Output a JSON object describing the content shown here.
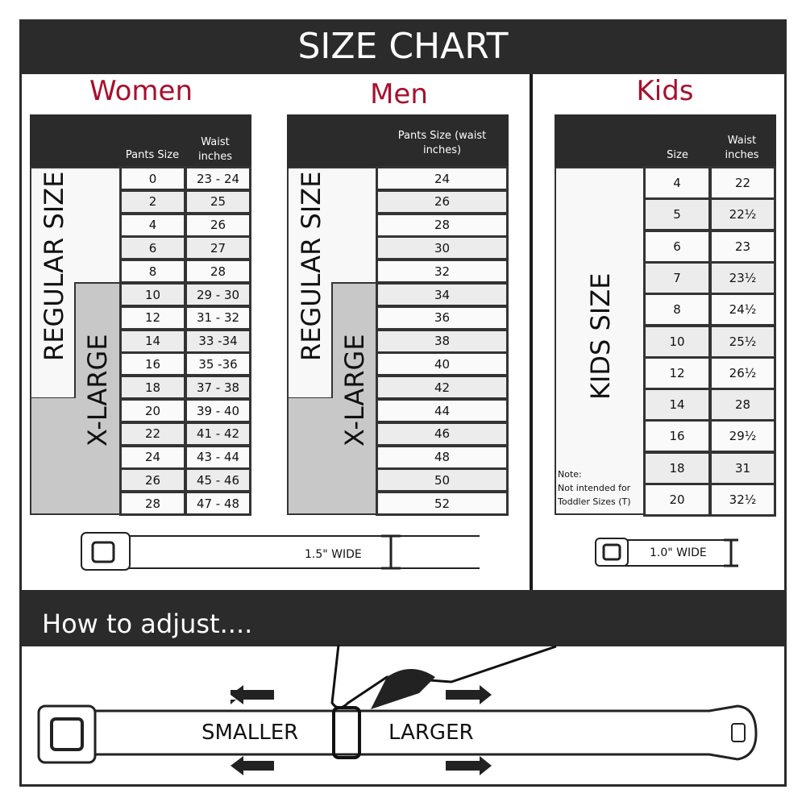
{
  "title": "SIZE CHART",
  "accent_color": "#a8102e",
  "women": {
    "heading": "Women",
    "col_size": "Pants Size",
    "col_waist": "Waist inches",
    "regular_label": "REGULAR SIZE",
    "xlarge_label": "X-LARGE",
    "rows": [
      [
        "0",
        "23 - 24"
      ],
      [
        "2",
        "25"
      ],
      [
        "4",
        "26"
      ],
      [
        "6",
        "27"
      ],
      [
        "8",
        "28"
      ],
      [
        "10",
        "29 - 30"
      ],
      [
        "12",
        "31 - 32"
      ],
      [
        "14",
        "33 -34"
      ],
      [
        "16",
        "35 -36"
      ],
      [
        "18",
        "37 - 38"
      ],
      [
        "20",
        "39 - 40"
      ],
      [
        "22",
        "41 - 42"
      ],
      [
        "24",
        "43 - 44"
      ],
      [
        "26",
        "45 - 46"
      ],
      [
        "28",
        "47 - 48"
      ]
    ]
  },
  "men": {
    "heading": "Men",
    "col_size": "Pants Size (waist inches)",
    "regular_label": "REGULAR SIZE",
    "xlarge_label": "X-LARGE",
    "rows": [
      "24",
      "26",
      "28",
      "30",
      "32",
      "34",
      "36",
      "38",
      "40",
      "42",
      "44",
      "46",
      "48",
      "50",
      "52"
    ]
  },
  "kids": {
    "heading": "Kids",
    "col_size": "Size",
    "col_waist": "Waist inches",
    "label": "KIDS SIZE",
    "note_title": "Note:",
    "note_line1": "Not intended for",
    "note_line2": "Toddler Sizes (T)",
    "rows": [
      [
        "4",
        "22"
      ],
      [
        "5",
        "22½"
      ],
      [
        "6",
        "23"
      ],
      [
        "7",
        "23½"
      ],
      [
        "8",
        "24½"
      ],
      [
        "10",
        "25½"
      ],
      [
        "12",
        "26½"
      ],
      [
        "14",
        "28"
      ],
      [
        "16",
        "29½"
      ],
      [
        "18",
        "31"
      ],
      [
        "20",
        "32½"
      ]
    ]
  },
  "adult_belt_width": "1.5\" WIDE",
  "kids_belt_width": "1.0\" WIDE",
  "adjust": {
    "heading": "How to adjust....",
    "smaller": "SMALLER",
    "larger": "LARGER"
  }
}
